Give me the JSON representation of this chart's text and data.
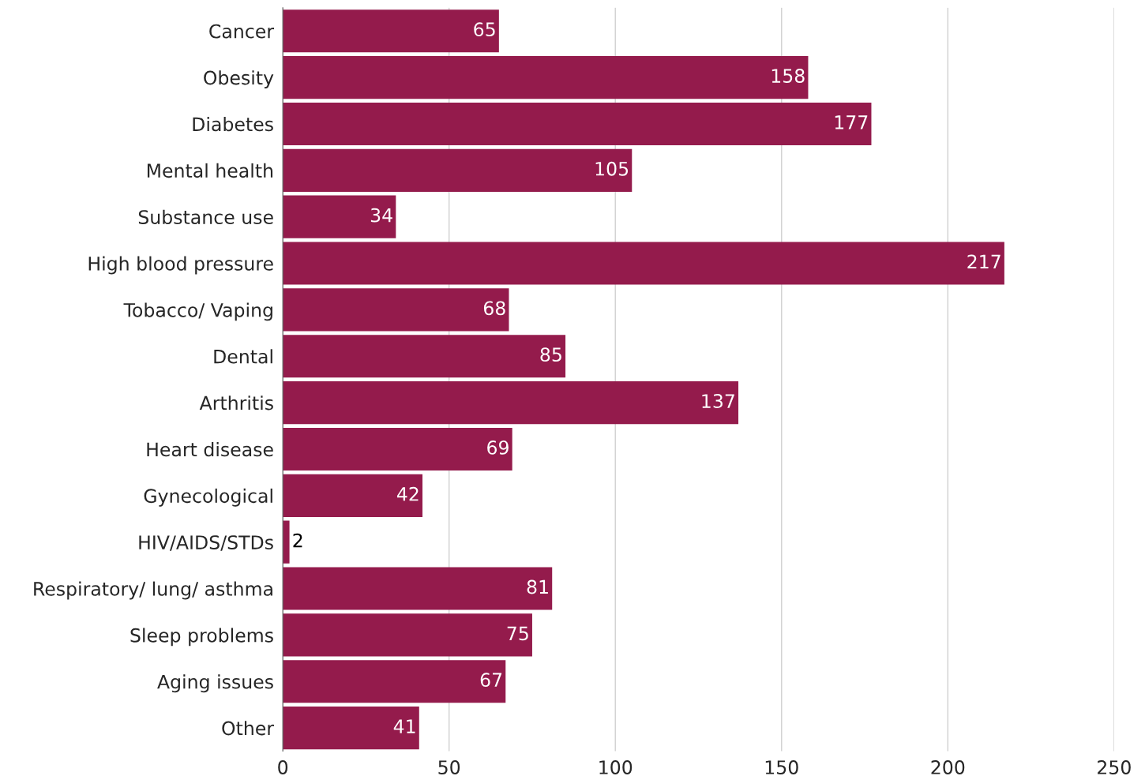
{
  "chart_data": {
    "type": "bar",
    "orientation": "horizontal",
    "categories": [
      "Cancer",
      "Obesity",
      "Diabetes",
      "Mental health",
      "Substance use",
      "High blood pressure",
      "Tobacco/ Vaping",
      "Dental",
      "Arthritis",
      "Heart disease",
      "Gynecological",
      "HIV/AIDS/STDs",
      "Respiratory/ lung/ asthma",
      "Sleep problems",
      "Aging issues",
      "Other"
    ],
    "values": [
      65,
      158,
      177,
      105,
      34,
      217,
      68,
      85,
      137,
      69,
      42,
      2,
      81,
      75,
      67,
      41
    ],
    "color": "#941b4c",
    "xlim": [
      0,
      250
    ],
    "xticks": [
      0,
      50,
      100,
      150,
      200,
      250
    ],
    "grid": "x",
    "data_labels": true
  }
}
